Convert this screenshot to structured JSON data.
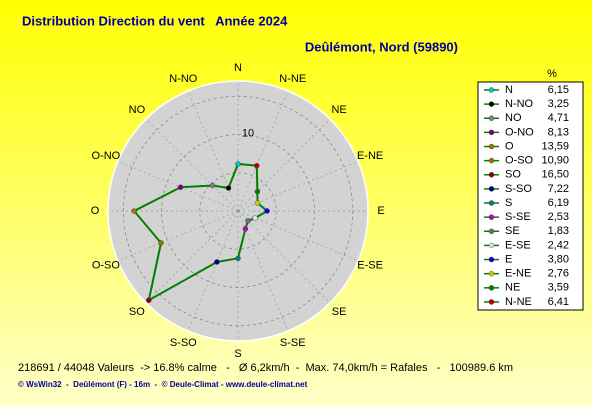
{
  "chart_data": {
    "type": "windrose",
    "title": "Distribution Direction du vent   Année 2024",
    "subtitle": "Deûlémont, Nord (59890)",
    "unit_label": "%",
    "categories": [
      "N",
      "N-NO",
      "NO",
      "O-NO",
      "O",
      "O-SO",
      "SO",
      "S-SO",
      "S",
      "S-SE",
      "SE",
      "E-SE",
      "E",
      "E-NE",
      "NE",
      "N-NE"
    ],
    "values": [
      6.15,
      3.25,
      4.71,
      8.13,
      13.59,
      10.9,
      16.5,
      7.22,
      6.19,
      2.53,
      1.83,
      2.42,
      3.8,
      2.76,
      3.59,
      6.41
    ],
    "value_labels": [
      "6,15",
      "3,25",
      "4,71",
      "8,13",
      "13,59",
      "10,90",
      "16,50",
      "7,22",
      "6,19",
      "2,53",
      "1,83",
      "2,42",
      "3,80",
      "2,76",
      "3,59",
      "6,41"
    ],
    "colors": [
      "#00c8c8",
      "#000000",
      "#808080",
      "#800080",
      "#a07800",
      "#808000",
      "#900000",
      "#000080",
      "#008080",
      "#c000c0",
      "#707070",
      "#e0e0e0",
      "#0000ff",
      "#c8c800",
      "#008000",
      "#c00000"
    ],
    "line_color": "#008000",
    "rlim": [
      0,
      17
    ],
    "rticks": [
      10
    ],
    "rgrid": [
      5,
      10,
      15
    ],
    "footer": "218691 / 44048 Valeurs  -> 16.8% calme   -   Ø 6,2km/h  -  Max. 74,0km/h = Rafales   -   100989.6 km",
    "credits": "© WsWin32  -  Deûlémont (F) - 16m  -  © Deule-Climat - www.deule-climat.net"
  }
}
